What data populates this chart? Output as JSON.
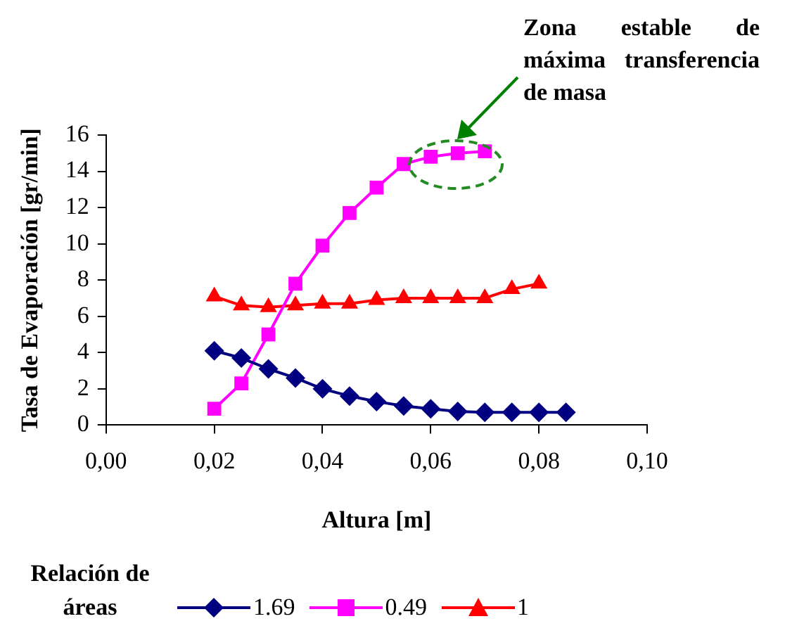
{
  "chart_data": {
    "type": "line",
    "xlabel": "Altura [m]",
    "ylabel": "Tasa de Evaporación [gr/min]",
    "legend_title": "Relación de áreas",
    "legend": "bottom",
    "grid": false,
    "xlim": [
      0,
      0.1
    ],
    "xticks": [
      {
        "value": 0,
        "label": "0,00"
      },
      {
        "value": 0.02,
        "label": "0,02"
      },
      {
        "value": 0.04,
        "label": "0,04"
      },
      {
        "value": 0.06,
        "label": "0,06"
      },
      {
        "value": 0.08,
        "label": "0,08"
      },
      {
        "value": 0.1,
        "label": "0,10"
      }
    ],
    "ylim": [
      0,
      16
    ],
    "yticks": [
      0,
      2,
      4,
      6,
      8,
      10,
      12,
      14,
      16
    ],
    "annotations": [
      "Zona estable de máxima transferencia de masa"
    ],
    "series": [
      {
        "name": "1.69",
        "color": "#000080",
        "marker": "diamond",
        "x": [
          0.02,
          0.025,
          0.03,
          0.035,
          0.04,
          0.045,
          0.05,
          0.055,
          0.06,
          0.065,
          0.07,
          0.075,
          0.08,
          0.085
        ],
        "values": [
          4.1,
          3.7,
          3.1,
          2.6,
          2.0,
          1.6,
          1.3,
          1.05,
          0.9,
          0.75,
          0.7,
          0.7,
          0.7,
          0.7
        ]
      },
      {
        "name": "0.49",
        "color": "#ff00ff",
        "marker": "square",
        "x": [
          0.02,
          0.025,
          0.03,
          0.035,
          0.04,
          0.045,
          0.05,
          0.055,
          0.06,
          0.065,
          0.07
        ],
        "values": [
          0.9,
          2.3,
          5.0,
          7.8,
          9.9,
          11.7,
          13.1,
          14.4,
          14.8,
          15.0,
          15.1
        ]
      },
      {
        "name": "1",
        "color": "#ff0000",
        "marker": "triangle",
        "x": [
          0.02,
          0.025,
          0.03,
          0.035,
          0.04,
          0.045,
          0.05,
          0.055,
          0.06,
          0.065,
          0.07,
          0.075,
          0.08
        ],
        "values": [
          7.1,
          6.6,
          6.5,
          6.6,
          6.7,
          6.7,
          6.9,
          7.0,
          7.0,
          7.0,
          7.0,
          7.5,
          7.8
        ]
      }
    ]
  }
}
